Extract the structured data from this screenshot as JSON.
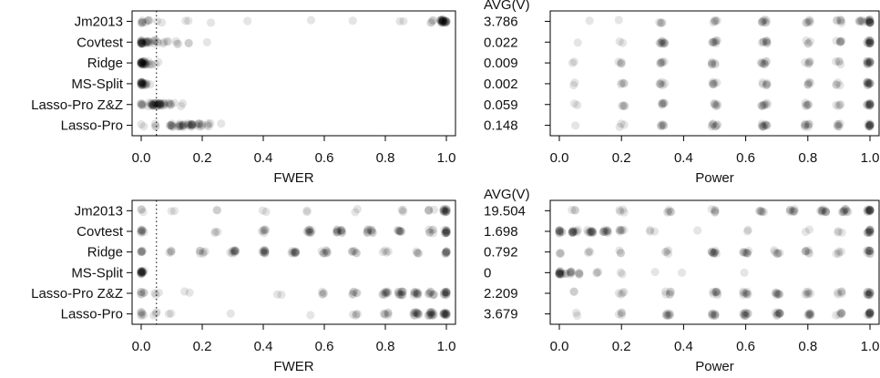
{
  "chart_data": [
    {
      "type": "scatter",
      "panel": "top-left",
      "xlabel": "FWER",
      "xlim": [
        0,
        1
      ],
      "xticks": [
        "0.0",
        "0.2",
        "0.4",
        "0.6",
        "0.8",
        "1.0"
      ],
      "reference_line": 0.05,
      "categories": [
        "Jm2013",
        "Covtest",
        "Ridge",
        "MS-Split",
        "Lasso-Pro Z&Z",
        "Lasso-Pro"
      ],
      "series": [
        {
          "values": [
            {
              "x": 0.0,
              "n": 5
            },
            {
              "x": 0.02,
              "n": 4
            },
            {
              "x": 0.06,
              "n": 2
            },
            {
              "x": 0.15,
              "n": 2
            },
            {
              "x": 0.22,
              "n": 1
            },
            {
              "x": 0.35,
              "n": 1
            },
            {
              "x": 0.55,
              "n": 1
            },
            {
              "x": 0.7,
              "n": 1
            },
            {
              "x": 0.85,
              "n": 2
            },
            {
              "x": 0.95,
              "n": 4
            },
            {
              "x": 0.985,
              "n": 14
            },
            {
              "x": 0.995,
              "n": 14
            }
          ]
        },
        {
          "values": [
            {
              "x": 0.0,
              "n": 16
            },
            {
              "x": 0.02,
              "n": 10
            },
            {
              "x": 0.05,
              "n": 6
            },
            {
              "x": 0.08,
              "n": 4
            },
            {
              "x": 0.12,
              "n": 3
            },
            {
              "x": 0.16,
              "n": 2
            },
            {
              "x": 0.22,
              "n": 1
            }
          ]
        },
        {
          "values": [
            {
              "x": 0.0,
              "n": 18
            },
            {
              "x": 0.01,
              "n": 10
            },
            {
              "x": 0.03,
              "n": 4
            },
            {
              "x": 0.05,
              "n": 2
            }
          ]
        },
        {
          "values": [
            {
              "x": 0.0,
              "n": 16
            },
            {
              "x": 0.01,
              "n": 6
            },
            {
              "x": 0.02,
              "n": 2
            }
          ]
        },
        {
          "values": [
            {
              "x": 0.0,
              "n": 6
            },
            {
              "x": 0.03,
              "n": 10
            },
            {
              "x": 0.05,
              "n": 14
            },
            {
              "x": 0.07,
              "n": 12
            },
            {
              "x": 0.1,
              "n": 6
            },
            {
              "x": 0.13,
              "n": 2
            }
          ]
        },
        {
          "values": [
            {
              "x": 0.0,
              "n": 2
            },
            {
              "x": 0.05,
              "n": 3
            },
            {
              "x": 0.1,
              "n": 8
            },
            {
              "x": 0.13,
              "n": 12
            },
            {
              "x": 0.16,
              "n": 12
            },
            {
              "x": 0.19,
              "n": 8
            },
            {
              "x": 0.22,
              "n": 4
            },
            {
              "x": 0.26,
              "n": 1
            }
          ]
        }
      ]
    },
    {
      "type": "scatter",
      "panel": "top-right",
      "xlabel": "Power",
      "xlim": [
        0,
        1
      ],
      "xticks": [
        "0.0",
        "0.2",
        "0.4",
        "0.6",
        "0.8",
        "1.0"
      ],
      "categories": [
        "Jm2013",
        "Covtest",
        "Ridge",
        "MS-Split",
        "Lasso-Pro Z&Z",
        "Lasso-Pro"
      ],
      "avg_header": "AVG(V)",
      "avg_values": [
        "3.786",
        "0.022",
        "0.009",
        "0.002",
        "0.059",
        "0.148"
      ],
      "series": [
        {
          "values": [
            {
              "x": 0.1,
              "n": 1
            },
            {
              "x": 0.2,
              "n": 1
            },
            {
              "x": 0.33,
              "n": 4
            },
            {
              "x": 0.5,
              "n": 5
            },
            {
              "x": 0.66,
              "n": 8
            },
            {
              "x": 0.8,
              "n": 6
            },
            {
              "x": 0.9,
              "n": 6
            },
            {
              "x": 0.97,
              "n": 6
            },
            {
              "x": 1.0,
              "n": 14
            }
          ]
        },
        {
          "values": [
            {
              "x": 0.05,
              "n": 1
            },
            {
              "x": 0.2,
              "n": 2
            },
            {
              "x": 0.33,
              "n": 10
            },
            {
              "x": 0.5,
              "n": 8
            },
            {
              "x": 0.66,
              "n": 8
            },
            {
              "x": 0.8,
              "n": 4
            },
            {
              "x": 0.9,
              "n": 6
            },
            {
              "x": 1.0,
              "n": 14
            }
          ]
        },
        {
          "values": [
            {
              "x": 0.05,
              "n": 2
            },
            {
              "x": 0.2,
              "n": 4
            },
            {
              "x": 0.33,
              "n": 6
            },
            {
              "x": 0.5,
              "n": 6
            },
            {
              "x": 0.66,
              "n": 8
            },
            {
              "x": 0.8,
              "n": 5
            },
            {
              "x": 0.9,
              "n": 4
            },
            {
              "x": 1.0,
              "n": 12
            }
          ]
        },
        {
          "values": [
            {
              "x": 0.05,
              "n": 2
            },
            {
              "x": 0.2,
              "n": 4
            },
            {
              "x": 0.33,
              "n": 6
            },
            {
              "x": 0.5,
              "n": 6
            },
            {
              "x": 0.66,
              "n": 6
            },
            {
              "x": 0.8,
              "n": 5
            },
            {
              "x": 0.9,
              "n": 4
            },
            {
              "x": 1.0,
              "n": 12
            }
          ]
        },
        {
          "values": [
            {
              "x": 0.05,
              "n": 2
            },
            {
              "x": 0.2,
              "n": 4
            },
            {
              "x": 0.33,
              "n": 6
            },
            {
              "x": 0.5,
              "n": 6
            },
            {
              "x": 0.66,
              "n": 8
            },
            {
              "x": 0.8,
              "n": 6
            },
            {
              "x": 0.9,
              "n": 4
            },
            {
              "x": 1.0,
              "n": 12
            }
          ]
        },
        {
          "values": [
            {
              "x": 0.05,
              "n": 1
            },
            {
              "x": 0.2,
              "n": 3
            },
            {
              "x": 0.33,
              "n": 6
            },
            {
              "x": 0.5,
              "n": 8
            },
            {
              "x": 0.66,
              "n": 10
            },
            {
              "x": 0.8,
              "n": 8
            },
            {
              "x": 0.9,
              "n": 6
            },
            {
              "x": 1.0,
              "n": 12
            }
          ]
        }
      ]
    },
    {
      "type": "scatter",
      "panel": "bottom-left",
      "xlabel": "FWER",
      "xlim": [
        0,
        1
      ],
      "xticks": [
        "0.0",
        "0.2",
        "0.4",
        "0.6",
        "0.8",
        "1.0"
      ],
      "reference_line": 0.05,
      "categories": [
        "Jm2013",
        "Covtest",
        "Ridge",
        "MS-Split",
        "Lasso-Pro Z&Z",
        "Lasso-Pro"
      ],
      "series": [
        {
          "values": [
            {
              "x": 0.0,
              "n": 3
            },
            {
              "x": 0.1,
              "n": 2
            },
            {
              "x": 0.25,
              "n": 2
            },
            {
              "x": 0.4,
              "n": 2
            },
            {
              "x": 0.55,
              "n": 2
            },
            {
              "x": 0.7,
              "n": 2
            },
            {
              "x": 0.85,
              "n": 3
            },
            {
              "x": 0.95,
              "n": 4
            },
            {
              "x": 1.0,
              "n": 14
            }
          ]
        },
        {
          "values": [
            {
              "x": 0.0,
              "n": 8
            },
            {
              "x": 0.25,
              "n": 3
            },
            {
              "x": 0.4,
              "n": 6
            },
            {
              "x": 0.55,
              "n": 10
            },
            {
              "x": 0.65,
              "n": 12
            },
            {
              "x": 0.75,
              "n": 10
            },
            {
              "x": 0.85,
              "n": 8
            },
            {
              "x": 0.95,
              "n": 6
            },
            {
              "x": 1.0,
              "n": 12
            }
          ]
        },
        {
          "values": [
            {
              "x": 0.0,
              "n": 6
            },
            {
              "x": 0.1,
              "n": 4
            },
            {
              "x": 0.2,
              "n": 6
            },
            {
              "x": 0.3,
              "n": 10
            },
            {
              "x": 0.4,
              "n": 10
            },
            {
              "x": 0.5,
              "n": 10
            },
            {
              "x": 0.6,
              "n": 8
            },
            {
              "x": 0.7,
              "n": 6
            },
            {
              "x": 0.8,
              "n": 4
            },
            {
              "x": 0.9,
              "n": 4
            },
            {
              "x": 1.0,
              "n": 8
            }
          ]
        },
        {
          "values": [
            {
              "x": 0.0,
              "n": 18
            }
          ]
        },
        {
          "values": [
            {
              "x": 0.0,
              "n": 6
            },
            {
              "x": 0.05,
              "n": 3
            },
            {
              "x": 0.15,
              "n": 2
            },
            {
              "x": 0.45,
              "n": 2
            },
            {
              "x": 0.6,
              "n": 4
            },
            {
              "x": 0.7,
              "n": 6
            },
            {
              "x": 0.8,
              "n": 10
            },
            {
              "x": 0.85,
              "n": 12
            },
            {
              "x": 0.9,
              "n": 10
            },
            {
              "x": 0.95,
              "n": 8
            },
            {
              "x": 1.0,
              "n": 12
            }
          ]
        },
        {
          "values": [
            {
              "x": 0.0,
              "n": 6
            },
            {
              "x": 0.05,
              "n": 3
            },
            {
              "x": 0.1,
              "n": 2
            },
            {
              "x": 0.3,
              "n": 1
            },
            {
              "x": 0.55,
              "n": 1
            },
            {
              "x": 0.7,
              "n": 4
            },
            {
              "x": 0.8,
              "n": 6
            },
            {
              "x": 0.9,
              "n": 12
            },
            {
              "x": 0.95,
              "n": 14
            },
            {
              "x": 1.0,
              "n": 14
            }
          ]
        }
      ]
    },
    {
      "type": "scatter",
      "panel": "bottom-right",
      "xlabel": "Power",
      "xlim": [
        0,
        1
      ],
      "xticks": [
        "0.0",
        "0.2",
        "0.4",
        "0.6",
        "0.8",
        "1.0"
      ],
      "categories": [
        "Jm2013",
        "Covtest",
        "Ridge",
        "MS-Split",
        "Lasso-Pro Z&Z",
        "Lasso-Pro"
      ],
      "avg_header": "AVG(V)",
      "avg_values": [
        "19.504",
        "1.698",
        "0.792",
        "0",
        "2.209",
        "3.679"
      ],
      "series": [
        {
          "values": [
            {
              "x": 0.05,
              "n": 3
            },
            {
              "x": 0.2,
              "n": 4
            },
            {
              "x": 0.35,
              "n": 5
            },
            {
              "x": 0.5,
              "n": 5
            },
            {
              "x": 0.65,
              "n": 6
            },
            {
              "x": 0.75,
              "n": 8
            },
            {
              "x": 0.85,
              "n": 10
            },
            {
              "x": 0.92,
              "n": 10
            },
            {
              "x": 1.0,
              "n": 14
            }
          ]
        },
        {
          "values": [
            {
              "x": 0.0,
              "n": 10
            },
            {
              "x": 0.05,
              "n": 12
            },
            {
              "x": 0.1,
              "n": 12
            },
            {
              "x": 0.15,
              "n": 10
            },
            {
              "x": 0.2,
              "n": 6
            },
            {
              "x": 0.3,
              "n": 3
            },
            {
              "x": 0.45,
              "n": 1
            },
            {
              "x": 0.6,
              "n": 2
            },
            {
              "x": 0.8,
              "n": 2
            },
            {
              "x": 0.9,
              "n": 3
            },
            {
              "x": 1.0,
              "n": 12
            }
          ]
        },
        {
          "values": [
            {
              "x": 0.0,
              "n": 3
            },
            {
              "x": 0.1,
              "n": 3
            },
            {
              "x": 0.2,
              "n": 3
            },
            {
              "x": 0.35,
              "n": 4
            },
            {
              "x": 0.5,
              "n": 10
            },
            {
              "x": 0.6,
              "n": 8
            },
            {
              "x": 0.7,
              "n": 6
            },
            {
              "x": 0.8,
              "n": 6
            },
            {
              "x": 0.9,
              "n": 4
            },
            {
              "x": 1.0,
              "n": 10
            }
          ]
        },
        {
          "values": [
            {
              "x": 0.0,
              "n": 14
            },
            {
              "x": 0.03,
              "n": 8
            },
            {
              "x": 0.07,
              "n": 4
            },
            {
              "x": 0.12,
              "n": 3
            },
            {
              "x": 0.2,
              "n": 2
            },
            {
              "x": 0.3,
              "n": 1
            },
            {
              "x": 0.4,
              "n": 1
            },
            {
              "x": 0.6,
              "n": 1
            }
          ]
        },
        {
          "values": [
            {
              "x": 0.05,
              "n": 2
            },
            {
              "x": 0.2,
              "n": 4
            },
            {
              "x": 0.35,
              "n": 6
            },
            {
              "x": 0.5,
              "n": 8
            },
            {
              "x": 0.6,
              "n": 8
            },
            {
              "x": 0.7,
              "n": 8
            },
            {
              "x": 0.8,
              "n": 6
            },
            {
              "x": 0.9,
              "n": 5
            },
            {
              "x": 1.0,
              "n": 12
            }
          ]
        },
        {
          "values": [
            {
              "x": 0.05,
              "n": 2
            },
            {
              "x": 0.2,
              "n": 4
            },
            {
              "x": 0.35,
              "n": 8
            },
            {
              "x": 0.5,
              "n": 8
            },
            {
              "x": 0.6,
              "n": 10
            },
            {
              "x": 0.7,
              "n": 10
            },
            {
              "x": 0.8,
              "n": 8
            },
            {
              "x": 0.9,
              "n": 6
            },
            {
              "x": 1.0,
              "n": 12
            }
          ]
        }
      ]
    }
  ],
  "colors": {
    "point": "#000000",
    "axis": "#000000",
    "text": "#111111"
  }
}
